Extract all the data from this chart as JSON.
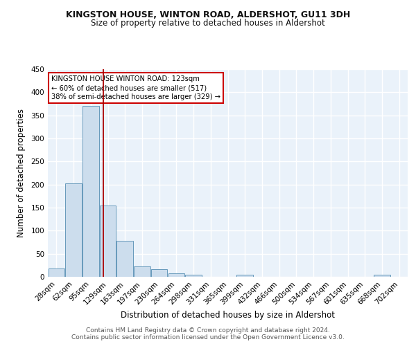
{
  "title1": "KINGSTON HOUSE, WINTON ROAD, ALDERSHOT, GU11 3DH",
  "title2": "Size of property relative to detached houses in Aldershot",
  "xlabel": "Distribution of detached houses by size in Aldershot",
  "ylabel": "Number of detached properties",
  "bar_labels": [
    "28sqm",
    "62sqm",
    "95sqm",
    "129sqm",
    "163sqm",
    "197sqm",
    "230sqm",
    "264sqm",
    "298sqm",
    "331sqm",
    "365sqm",
    "399sqm",
    "432sqm",
    "466sqm",
    "500sqm",
    "534sqm",
    "567sqm",
    "601sqm",
    "635sqm",
    "668sqm",
    "702sqm"
  ],
  "bar_values": [
    18,
    203,
    370,
    155,
    78,
    22,
    17,
    8,
    5,
    0,
    0,
    5,
    0,
    0,
    0,
    0,
    0,
    0,
    0,
    4,
    0
  ],
  "bar_color": "#ccdded",
  "bar_edge_color": "#6699bb",
  "bg_color": "#eaf2fa",
  "grid_color": "#ffffff",
  "vline_x_data": 2.72,
  "vline_color": "#aa0000",
  "annotation_text": "KINGSTON HOUSE WINTON ROAD: 123sqm\n← 60% of detached houses are smaller (517)\n38% of semi-detached houses are larger (329) →",
  "annotation_box_color": "#ffffff",
  "annotation_box_edge": "#cc0000",
  "footer": "Contains HM Land Registry data © Crown copyright and database right 2024.\nContains public sector information licensed under the Open Government Licence v3.0.",
  "ylim": [
    0,
    450
  ],
  "yticks": [
    0,
    50,
    100,
    150,
    200,
    250,
    300,
    350,
    400,
    450
  ],
  "title1_fontsize": 9,
  "title2_fontsize": 8.5,
  "xlabel_fontsize": 8.5,
  "ylabel_fontsize": 8.5,
  "tick_fontsize": 7.5,
  "footer_fontsize": 6.5
}
